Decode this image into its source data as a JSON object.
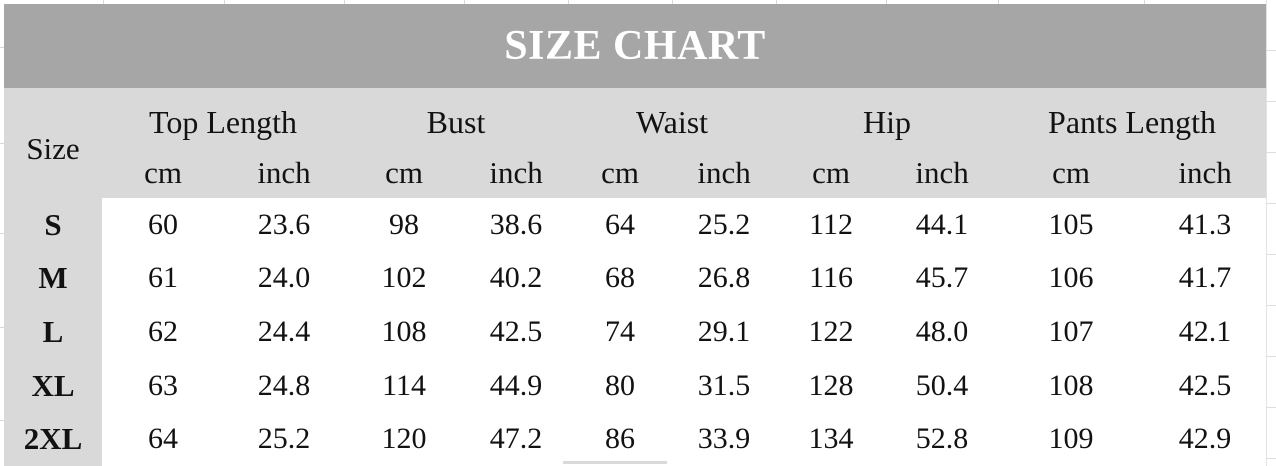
{
  "colors": {
    "title_bar_bg": "#a6a6a6",
    "title_text": "#ffffff",
    "header_band_bg": "#d9d9d9",
    "size_column_bg": "#d9d9d9",
    "data_cell_bg": "#ffffff",
    "text": "#121212",
    "gridline": "#d8d8d8"
  },
  "chart_data": {
    "type": "table",
    "title": "SIZE CHART",
    "size_column_header": "Size",
    "measure_groups": [
      {
        "label": "Top Length",
        "units": [
          "cm",
          "inch"
        ]
      },
      {
        "label": "Bust",
        "units": [
          "cm",
          "inch"
        ]
      },
      {
        "label": "Waist",
        "units": [
          "cm",
          "inch"
        ]
      },
      {
        "label": "Hip",
        "units": [
          "cm",
          "inch"
        ]
      },
      {
        "label": "Pants Length",
        "units": [
          "cm",
          "inch"
        ]
      }
    ],
    "rows": [
      {
        "size": "S",
        "values": [
          "60",
          "23.6",
          "98",
          "38.6",
          "64",
          "25.2",
          "112",
          "44.1",
          "105",
          "41.3"
        ]
      },
      {
        "size": "M",
        "values": [
          "61",
          "24.0",
          "102",
          "40.2",
          "68",
          "26.8",
          "116",
          "45.7",
          "106",
          "41.7"
        ]
      },
      {
        "size": "L",
        "values": [
          "62",
          "24.4",
          "108",
          "42.5",
          "74",
          "29.1",
          "122",
          "48.0",
          "107",
          "42.1"
        ]
      },
      {
        "size": "XL",
        "values": [
          "63",
          "24.8",
          "114",
          "44.9",
          "80",
          "31.5",
          "128",
          "50.4",
          "108",
          "42.5"
        ]
      },
      {
        "size": "2XL",
        "values": [
          "64",
          "25.2",
          "120",
          "47.2",
          "86",
          "33.9",
          "134",
          "52.8",
          "109",
          "42.9"
        ]
      }
    ]
  }
}
